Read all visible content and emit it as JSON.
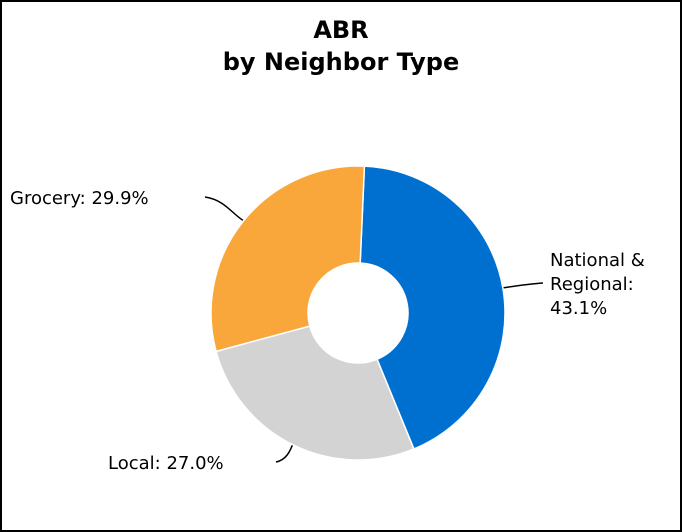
{
  "chart_data": {
    "type": "donut",
    "title": "ABR",
    "subtitle": "by Neighbor Type",
    "values": [
      43.1,
      27.0,
      29.9
    ],
    "value_labels": [
      "National & Regional: 43.1%",
      "Local: 27.0%",
      "Grocery: 29.9%"
    ],
    "colors": [
      "#0070d0",
      "#d3d3d3",
      "#f9a73a"
    ]
  }
}
